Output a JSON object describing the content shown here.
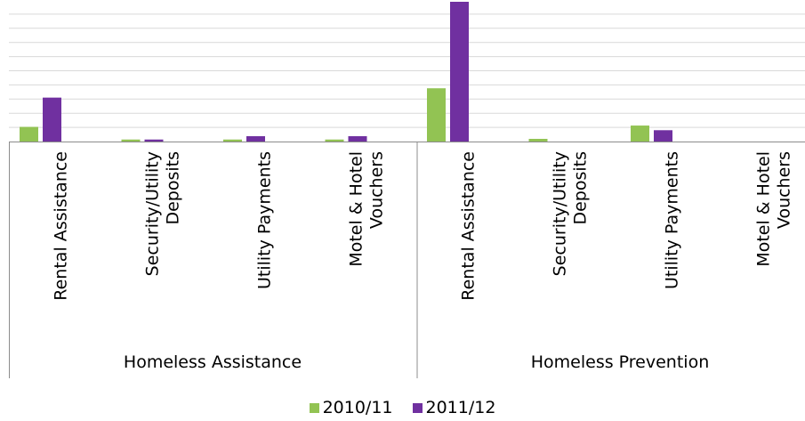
{
  "chart_data": {
    "type": "bar",
    "groups": [
      {
        "label": "Homeless Assistance",
        "categories": [
          "Rental Assistance",
          "Security/Utility Deposits",
          "Utility Payments",
          "Motel & Hotel Vouchers"
        ]
      },
      {
        "label": "Homeless Prevention",
        "categories": [
          "Rental Assistance",
          "Security/Utility Deposits",
          "Utility Payments",
          "Motel & Hotel Vouchers"
        ]
      }
    ],
    "category_lines": [
      [
        "Rental Assistance"
      ],
      [
        "Security/Utility",
        "Deposits"
      ],
      [
        "Utility Payments"
      ],
      [
        "Motel & Hotel",
        "Vouchers"
      ],
      [
        "Rental Assistance"
      ],
      [
        "Security/Utility",
        "Deposits"
      ],
      [
        "Utility Payments"
      ],
      [
        "Motel & Hotel",
        "Vouchers"
      ]
    ],
    "series": [
      {
        "name": "2010/11",
        "color": "#92c353",
        "values": [
          1.1,
          0.15,
          0.15,
          0.15,
          4.0,
          0.2,
          1.2,
          0
        ]
      },
      {
        "name": "2011/12",
        "color": "#7030a0",
        "values": [
          3.3,
          0.15,
          0.4,
          0.4,
          10.5,
          0,
          0.85,
          0
        ]
      }
    ],
    "ylim": [
      0,
      10.5
    ],
    "grid": true,
    "gridline_count": 10,
    "legend_position": "bottom"
  }
}
